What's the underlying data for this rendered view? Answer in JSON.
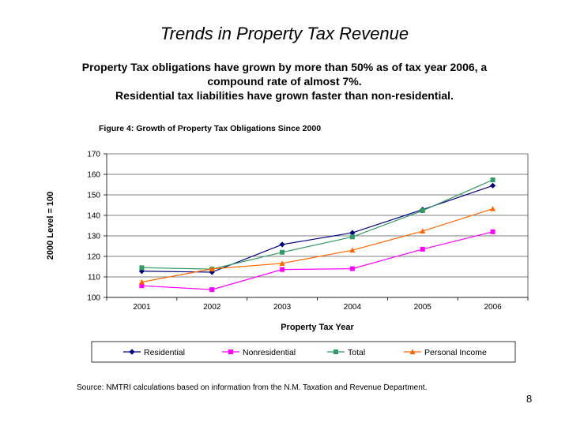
{
  "slide": {
    "title": "Trends in Property Tax Revenue",
    "subtitle_line1": "Property Tax obligations have grown by more than 50% as of tax year 2006, a",
    "subtitle_line2": "compound rate of almost 7%.",
    "subtitle_line3": "Residential tax liabilities have grown faster than non-residential.",
    "figure_caption": "Figure 4: Growth of Property Tax Obligations Since 2000",
    "source": "Source: NMTRI calculations based on information from the N.M. Taxation and Revenue Department.",
    "page_number": "8"
  },
  "chart_data": {
    "type": "line",
    "categories": [
      "2001",
      "2002",
      "2003",
      "2004",
      "2005",
      "2006"
    ],
    "xlabel": "Property Tax Year",
    "ylabel": "2000 Level = 100",
    "ylim": [
      100,
      170
    ],
    "yticks": [
      100,
      110,
      120,
      130,
      140,
      150,
      160,
      170
    ],
    "grid": true,
    "legend_position": "bottom",
    "series": [
      {
        "name": "Residential",
        "color": "#000080",
        "marker": "diamond",
        "values": [
          112.8,
          112.3,
          125.8,
          131.5,
          142.8,
          154.5
        ]
      },
      {
        "name": "Nonresidential",
        "color": "#FF00FF",
        "marker": "square",
        "values": [
          105.7,
          103.8,
          113.6,
          114.0,
          123.5,
          132.0
        ]
      },
      {
        "name": "Total",
        "color": "#339966",
        "marker": "square",
        "values": [
          114.5,
          113.8,
          122.0,
          129.5,
          142.3,
          157.3
        ]
      },
      {
        "name": "Personal Income",
        "color": "#FF6600",
        "marker": "triangle",
        "values": [
          107.5,
          113.9,
          116.6,
          123.0,
          132.3,
          143.2
        ]
      }
    ]
  }
}
